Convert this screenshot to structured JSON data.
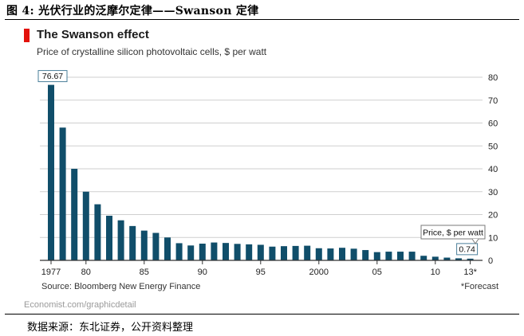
{
  "figure": {
    "caption": "图 4:  光伏行业的泛摩尔定律——Swanson 定律",
    "data_source": "数据来源：东北证券，公开资料整理"
  },
  "chart_data": {
    "type": "bar",
    "title": "The Swanson effect",
    "subtitle": "Price of crystalline silicon photovoltaic cells, $ per watt",
    "source": "Source: Bloomberg New Energy Finance",
    "forecast_note": "*Forecast",
    "credit": "Economist.com/graphicdetail",
    "x": [
      1977,
      1978,
      1979,
      1980,
      1981,
      1982,
      1983,
      1984,
      1985,
      1986,
      1987,
      1988,
      1989,
      1990,
      1991,
      1992,
      1993,
      1994,
      1995,
      1996,
      1997,
      1998,
      1999,
      2000,
      2001,
      2002,
      2003,
      2004,
      2005,
      2006,
      2007,
      2008,
      2009,
      2010,
      2011,
      2012,
      2013
    ],
    "values": [
      76.67,
      58,
      40,
      30,
      24.5,
      19.5,
      17.5,
      15,
      13,
      12,
      10,
      7.5,
      6.5,
      7.3,
      7.8,
      7.6,
      7.2,
      7,
      6.8,
      6,
      6.2,
      6.3,
      6.4,
      5.3,
      5.2,
      5.5,
      5.1,
      4.5,
      3.6,
      3.8,
      3.8,
      3.8,
      2,
      1.6,
      1.2,
      0.9,
      0.74
    ],
    "x_tick_labels": [
      {
        "year": 1977,
        "label": "1977"
      },
      {
        "year": 1980,
        "label": "80"
      },
      {
        "year": 1985,
        "label": "85"
      },
      {
        "year": 1990,
        "label": "90"
      },
      {
        "year": 1995,
        "label": "95"
      },
      {
        "year": 2000,
        "label": "2000"
      },
      {
        "year": 2005,
        "label": "05"
      },
      {
        "year": 2010,
        "label": "10"
      },
      {
        "year": 2013,
        "label": "13*"
      }
    ],
    "y_ticks": [
      0,
      10,
      20,
      30,
      40,
      50,
      60,
      70,
      80
    ],
    "ylim": [
      0,
      80
    ],
    "y_axis_side": "right",
    "grid": true,
    "bar_color": "#104e6a",
    "annotations": {
      "first_value_label": "76.67",
      "last_value_label": "0.74",
      "legend_label": "Price, $ per watt"
    }
  }
}
